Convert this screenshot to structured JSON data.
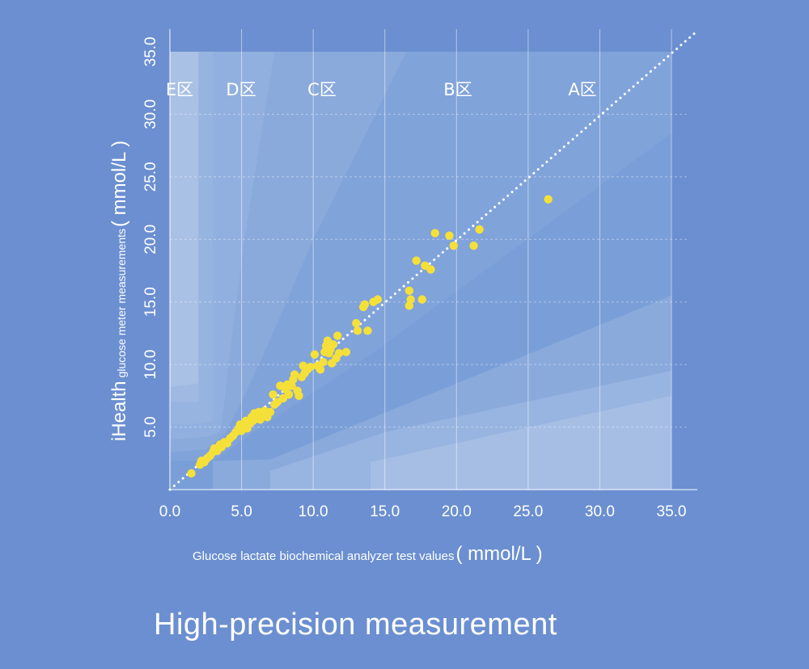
{
  "chart_data": {
    "type": "scatter",
    "title": "",
    "xlabel": "Glucose lactate biochemical analyzer test values",
    "xlabel_unit": "( mmol/L )",
    "ylabel_brand": "iHealth",
    "ylabel": "glucose meter measurements",
    "ylabel_unit": "( mmol/L )",
    "xlim": [
      0,
      35
    ],
    "ylim": [
      0,
      35
    ],
    "x_ticks": [
      "0.0",
      "5.0",
      "10.0",
      "15.0",
      "20.0",
      "25.0",
      "30.0",
      "35.0"
    ],
    "y_ticks": [
      "5.0",
      "10.0",
      "15.0",
      "20.0",
      "25.0",
      "30.0",
      "35.0"
    ],
    "grid": true,
    "zones": [
      "E区",
      "D区",
      "C区",
      "B区",
      "A区"
    ],
    "reference_line": "y = x (dotted)",
    "colors": {
      "background": "#6b8fd0",
      "points": "#f5e03a",
      "text": "#ffffff"
    },
    "series": [
      {
        "points": [
          [
            1.5,
            1.3
          ],
          [
            2.1,
            2.0
          ],
          [
            2.2,
            2.3
          ],
          [
            2.4,
            2.2
          ],
          [
            2.6,
            2.5
          ],
          [
            2.8,
            2.7
          ],
          [
            3.0,
            3.0
          ],
          [
            3.1,
            3.3
          ],
          [
            3.3,
            3.1
          ],
          [
            3.5,
            3.6
          ],
          [
            3.6,
            3.4
          ],
          [
            3.8,
            3.8
          ],
          [
            4.0,
            3.7
          ],
          [
            4.2,
            4.1
          ],
          [
            4.4,
            4.3
          ],
          [
            4.6,
            4.6
          ],
          [
            4.8,
            4.9
          ],
          [
            4.9,
            5.2
          ],
          [
            5.0,
            4.7
          ],
          [
            5.2,
            5.1
          ],
          [
            5.3,
            5.5
          ],
          [
            5.4,
            4.9
          ],
          [
            5.6,
            5.3
          ],
          [
            5.7,
            5.8
          ],
          [
            5.8,
            5.5
          ],
          [
            5.9,
            6.1
          ],
          [
            6.0,
            5.7
          ],
          [
            6.1,
            5.9
          ],
          [
            6.2,
            6.2
          ],
          [
            6.3,
            5.6
          ],
          [
            6.5,
            5.9
          ],
          [
            6.6,
            6.3
          ],
          [
            6.8,
            5.8
          ],
          [
            7.0,
            6.2
          ],
          [
            7.2,
            7.6
          ],
          [
            7.3,
            6.8
          ],
          [
            7.5,
            7.0
          ],
          [
            7.7,
            8.3
          ],
          [
            7.9,
            7.3
          ],
          [
            8.1,
            8.0
          ],
          [
            8.2,
            8.4
          ],
          [
            8.3,
            7.6
          ],
          [
            8.5,
            8.3
          ],
          [
            8.6,
            8.8
          ],
          [
            8.7,
            9.2
          ],
          [
            8.9,
            7.9
          ],
          [
            9.0,
            7.5
          ],
          [
            9.2,
            9.0
          ],
          [
            9.3,
            9.9
          ],
          [
            9.4,
            9.3
          ],
          [
            9.6,
            9.6
          ],
          [
            9.8,
            9.8
          ],
          [
            10.1,
            10.8
          ],
          [
            10.3,
            9.9
          ],
          [
            10.5,
            9.6
          ],
          [
            10.7,
            10.2
          ],
          [
            10.8,
            11.0
          ],
          [
            10.9,
            11.5
          ],
          [
            11.0,
            11.9
          ],
          [
            11.1,
            10.9
          ],
          [
            11.2,
            11.2
          ],
          [
            11.3,
            10.1
          ],
          [
            11.4,
            11.6
          ],
          [
            11.6,
            10.5
          ],
          [
            11.7,
            12.3
          ],
          [
            11.8,
            10.9
          ],
          [
            12.3,
            11.0
          ],
          [
            13.0,
            13.3
          ],
          [
            13.1,
            12.7
          ],
          [
            13.5,
            14.6
          ],
          [
            13.6,
            14.8
          ],
          [
            13.8,
            12.7
          ],
          [
            14.2,
            15.0
          ],
          [
            14.5,
            15.2
          ],
          [
            16.7,
            15.9
          ],
          [
            16.7,
            14.7
          ],
          [
            16.8,
            15.2
          ],
          [
            17.2,
            18.3
          ],
          [
            17.6,
            15.2
          ],
          [
            17.8,
            17.9
          ],
          [
            18.2,
            17.6
          ],
          [
            18.5,
            20.5
          ],
          [
            19.5,
            20.3
          ],
          [
            19.8,
            19.5
          ],
          [
            21.2,
            19.5
          ],
          [
            21.6,
            20.8
          ],
          [
            26.4,
            23.2
          ]
        ]
      }
    ]
  },
  "caption": "High-precision measurement"
}
